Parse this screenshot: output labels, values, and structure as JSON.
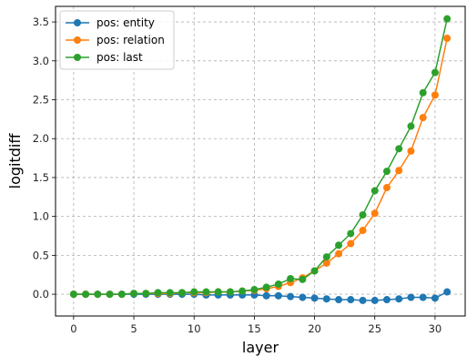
{
  "chart_data": {
    "type": "line",
    "xlabel": "layer",
    "ylabel": "logitdiff",
    "xlim": [
      -1.5,
      32.5
    ],
    "ylim": [
      -0.28,
      3.7
    ],
    "xticks": [
      0,
      5,
      10,
      15,
      20,
      25,
      30
    ],
    "xtick_labels": [
      "0",
      "5",
      "10",
      "15",
      "20",
      "25",
      "30"
    ],
    "yticks": [
      0.0,
      0.5,
      1.0,
      1.5,
      2.0,
      2.5,
      3.0,
      3.5
    ],
    "ytick_labels": [
      "0.0",
      "0.5",
      "1.0",
      "1.5",
      "2.0",
      "2.5",
      "3.0",
      "3.5"
    ],
    "grid": true,
    "legend_position": "top-left",
    "x": [
      0,
      1,
      2,
      3,
      4,
      5,
      6,
      7,
      8,
      9,
      10,
      11,
      12,
      13,
      14,
      15,
      16,
      17,
      18,
      19,
      20,
      21,
      22,
      23,
      24,
      25,
      26,
      27,
      28,
      29,
      30,
      31
    ],
    "series": [
      {
        "name": "pos: entity",
        "color": "#1f77b4",
        "values": [
          0.0,
          0.0,
          0.0,
          0.0,
          0.0,
          0.0,
          0.0,
          0.0,
          0.0,
          0.0,
          0.0,
          -0.01,
          -0.01,
          -0.01,
          -0.01,
          -0.01,
          -0.02,
          -0.02,
          -0.03,
          -0.04,
          -0.05,
          -0.06,
          -0.07,
          -0.07,
          -0.08,
          -0.08,
          -0.07,
          -0.06,
          -0.04,
          -0.04,
          -0.05,
          0.03
        ]
      },
      {
        "name": "pos: relation",
        "color": "#ff7f0e",
        "values": [
          0.0,
          0.0,
          0.0,
          0.0,
          0.0,
          0.01,
          0.01,
          0.01,
          0.01,
          0.02,
          0.02,
          0.02,
          0.03,
          0.03,
          0.04,
          0.05,
          0.07,
          0.1,
          0.15,
          0.21,
          0.3,
          0.4,
          0.52,
          0.65,
          0.82,
          1.04,
          1.37,
          1.59,
          1.84,
          2.27,
          2.56,
          3.29
        ]
      },
      {
        "name": "pos: last",
        "color": "#2ca02c",
        "values": [
          0.0,
          0.0,
          0.0,
          0.0,
          0.0,
          0.01,
          0.01,
          0.02,
          0.02,
          0.02,
          0.03,
          0.03,
          0.03,
          0.03,
          0.04,
          0.06,
          0.09,
          0.13,
          0.2,
          0.19,
          0.3,
          0.48,
          0.63,
          0.78,
          1.02,
          1.33,
          1.58,
          1.87,
          2.16,
          2.59,
          2.85,
          3.54
        ]
      }
    ]
  }
}
